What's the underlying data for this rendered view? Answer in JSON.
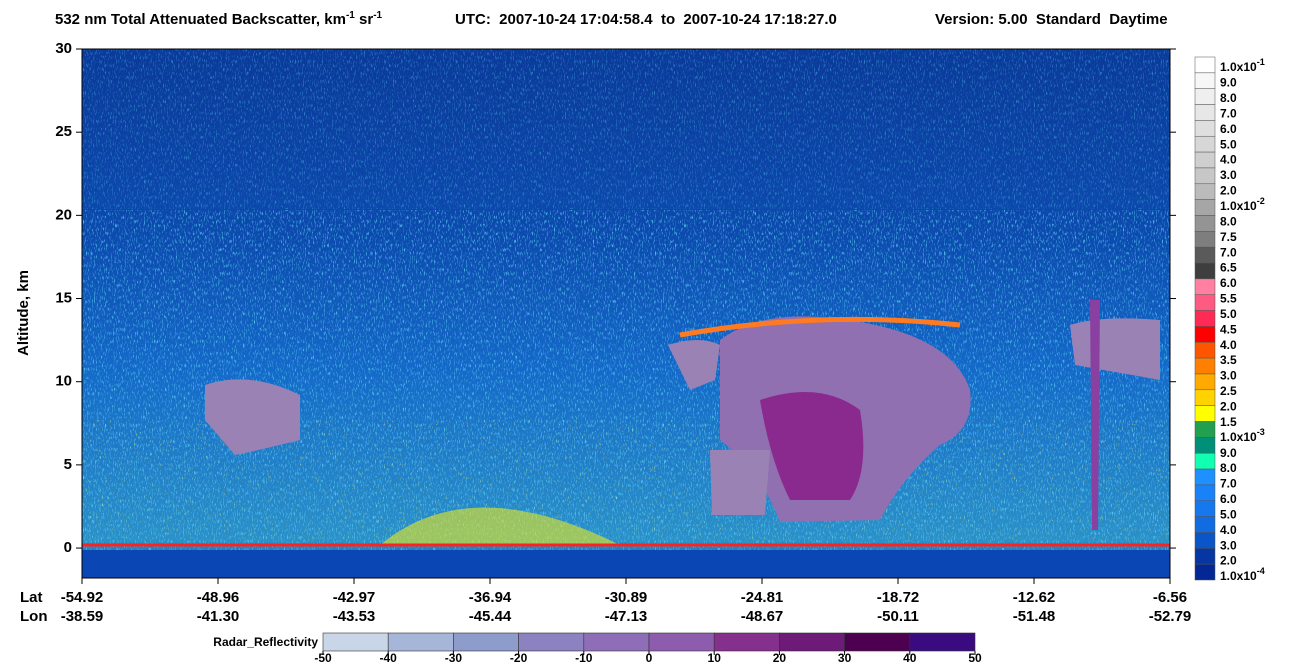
{
  "chart_data": {
    "type": "curtain",
    "title": {
      "text": "532 nm Total Attenuated Backscatter, km",
      "sup1": "-1",
      "mid": " sr",
      "sup2": "-1"
    },
    "utc": "UTC:  2007-10-24 17:04:58.4  to  2007-10-24 17:18:27.0",
    "version": "Version: 5.00  Standard  Daytime",
    "ylabel": "Altitude, km",
    "ylim": [
      -1.8,
      30
    ],
    "yticks": [
      0,
      5,
      10,
      15,
      20,
      25,
      30
    ],
    "x_rows": [
      "Lat",
      "Lon"
    ],
    "lat": [
      "-54.92",
      "-48.96",
      "-42.97",
      "-36.94",
      "-30.89",
      "-24.81",
      "-18.72",
      "-12.62",
      "-6.56"
    ],
    "lon": [
      "-38.59",
      "-41.30",
      "-43.53",
      "-45.44",
      "-47.13",
      "-48.67",
      "-50.11",
      "-51.48",
      "-52.79"
    ],
    "colorbar": {
      "labels": [
        {
          "base": "1.0x10",
          "exp": "-1"
        },
        "9.0",
        "8.0",
        "7.0",
        "6.0",
        "5.0",
        "4.0",
        "3.0",
        "2.0",
        {
          "base": "1.0x10",
          "exp": "-2"
        },
        "8.0",
        "7.5",
        "7.0",
        "6.5",
        "6.0",
        "5.5",
        "5.0",
        "4.5",
        "4.0",
        "3.5",
        "3.0",
        "2.5",
        "2.0",
        "1.5",
        {
          "base": "1.0x10",
          "exp": "-3"
        },
        "9.0",
        "8.0",
        "7.0",
        "6.0",
        "5.0",
        "4.0",
        "3.0",
        "2.0",
        {
          "base": "1.0x10",
          "exp": "-4"
        }
      ],
      "colors": [
        "#ffffff",
        "#f7f7f7",
        "#efefef",
        "#e7e7e7",
        "#dfdfdf",
        "#d7d7d7",
        "#cfcfcf",
        "#c7c7c7",
        "#bbbbbb",
        "#a6a6a6",
        "#949494",
        "#7e7e7e",
        "#5a5a5a",
        "#3e3e3e",
        "#ff80a0",
        "#ff5a82",
        "#ff2a55",
        "#ff0000",
        "#ff5500",
        "#ff8000",
        "#ffaa00",
        "#ffd200",
        "#ffff00",
        "#22a050",
        "#00907a",
        "#10ffb0",
        "#1e90ff",
        "#1a82f8",
        "#1678ee",
        "#106ce0",
        "#0a55c8",
        "#0536a4",
        "#032896"
      ]
    },
    "radar_bar": {
      "label": "Radar_Reflectivity",
      "ticks": [
        -50,
        -40,
        -30,
        -20,
        -10,
        0,
        10,
        20,
        30,
        40,
        50
      ],
      "colors": [
        "#c8d6e8",
        "#a6b6d8",
        "#8e9ccc",
        "#8c82c2",
        "#8e6eb8",
        "#8e5cae",
        "#86308e",
        "#6e1a78",
        "#4e0050",
        "#3a0a80"
      ]
    }
  }
}
